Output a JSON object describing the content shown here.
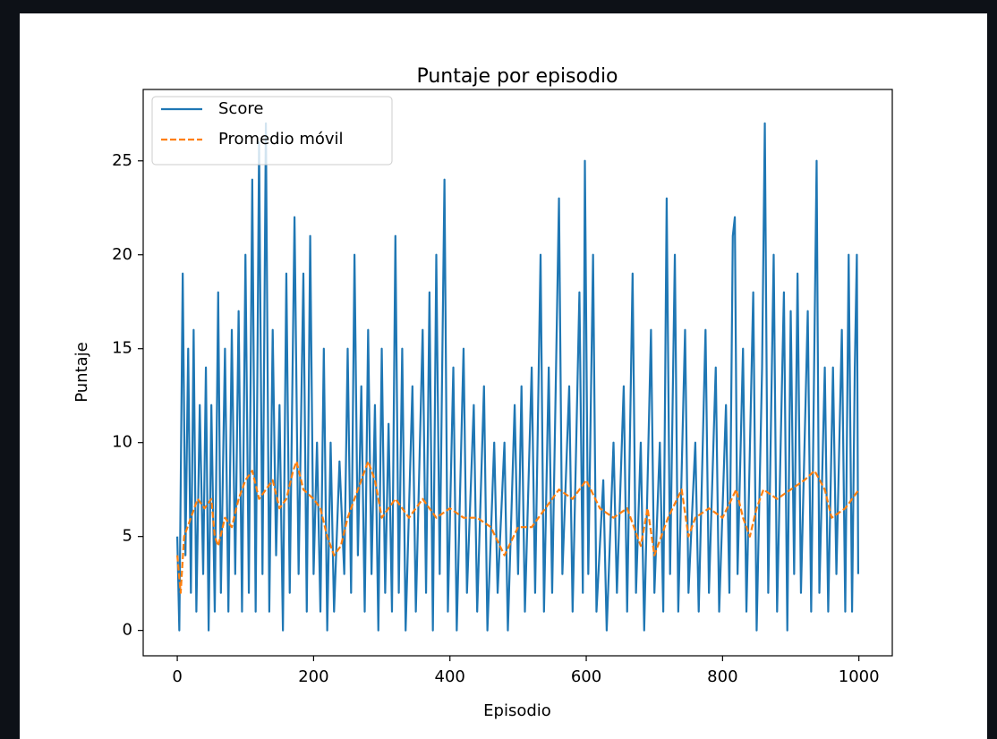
{
  "chart_data": {
    "type": "line",
    "title": "Puntaje por episodio",
    "xlabel": "Episodio",
    "ylabel": "Puntaje",
    "xlim": [
      -50,
      1049
    ],
    "ylim": [
      -1.35,
      28.8
    ],
    "xticks": [
      0,
      200,
      400,
      600,
      800,
      1000
    ],
    "yticks": [
      0,
      5,
      10,
      15,
      20,
      25
    ],
    "legend": "upper left",
    "series": [
      {
        "name": "Score",
        "color": "#1f77b4",
        "style": "solid",
        "x": [
          0,
          3,
          8,
          12,
          16,
          20,
          24,
          28,
          33,
          38,
          42,
          46,
          50,
          55,
          60,
          64,
          70,
          75,
          80,
          85,
          90,
          95,
          100,
          105,
          110,
          115,
          120,
          125,
          130,
          135,
          140,
          145,
          150,
          155,
          160,
          165,
          172,
          178,
          185,
          190,
          195,
          200,
          205,
          210,
          215,
          220,
          225,
          230,
          238,
          245,
          250,
          255,
          260,
          265,
          270,
          275,
          280,
          285,
          290,
          295,
          300,
          305,
          310,
          315,
          320,
          325,
          330,
          335,
          345,
          350,
          360,
          365,
          370,
          375,
          380,
          385,
          392,
          397,
          405,
          410,
          420,
          425,
          435,
          440,
          450,
          455,
          465,
          470,
          480,
          485,
          495,
          500,
          505,
          510,
          520,
          525,
          533,
          538,
          545,
          550,
          560,
          565,
          575,
          580,
          590,
          595,
          598,
          603,
          610,
          615,
          625,
          630,
          640,
          645,
          655,
          660,
          668,
          673,
          680,
          685,
          695,
          700,
          708,
          713,
          718,
          723,
          730,
          735,
          745,
          750,
          760,
          765,
          775,
          780,
          790,
          795,
          805,
          810,
          815,
          818,
          822,
          830,
          835,
          845,
          850,
          858,
          862,
          867,
          875,
          880,
          890,
          895,
          900,
          905,
          910,
          915,
          925,
          930,
          938,
          942,
          950,
          955,
          962,
          967,
          975,
          980,
          985,
          990,
          994,
          997,
          999
        ],
        "values": [
          5,
          0,
          19,
          4,
          15,
          2,
          16,
          1,
          12,
          3,
          14,
          0,
          12,
          1,
          18,
          2,
          15,
          1,
          16,
          3,
          17,
          1,
          20,
          2,
          24,
          1,
          26,
          3,
          27,
          1,
          16,
          4,
          12,
          0,
          19,
          2,
          22,
          3,
          19,
          1,
          21,
          3,
          10,
          1,
          15,
          0,
          10,
          1,
          9,
          3,
          15,
          2,
          20,
          4,
          13,
          1,
          16,
          3,
          12,
          0,
          15,
          2,
          11,
          1,
          21,
          2,
          15,
          0,
          13,
          1,
          16,
          2,
          18,
          0,
          20,
          3,
          24,
          1,
          14,
          0,
          15,
          2,
          12,
          1,
          13,
          0,
          10,
          2,
          10,
          0,
          12,
          3,
          13,
          1,
          14,
          2,
          20,
          1,
          14,
          2,
          23,
          3,
          13,
          1,
          18,
          2,
          25,
          3,
          20,
          1,
          8,
          0,
          10,
          2,
          13,
          1,
          19,
          2,
          10,
          0,
          16,
          2,
          10,
          1,
          23,
          3,
          20,
          1,
          16,
          2,
          10,
          1,
          16,
          2,
          14,
          1,
          12,
          2,
          21,
          22,
          3,
          15,
          1,
          18,
          0,
          14,
          27,
          2,
          20,
          1,
          18,
          0,
          17,
          3,
          19,
          2,
          17,
          1,
          25,
          2,
          14,
          1,
          14,
          3,
          16,
          1,
          20,
          1,
          14,
          20,
          3
        ]
      },
      {
        "name": "Promedio móvil",
        "color": "#ff7f0e",
        "style": "dashed",
        "x": [
          0,
          5,
          10,
          20,
          30,
          40,
          50,
          55,
          60,
          70,
          80,
          90,
          100,
          110,
          120,
          130,
          140,
          150,
          160,
          170,
          175,
          185,
          200,
          210,
          220,
          230,
          240,
          250,
          260,
          270,
          280,
          290,
          300,
          320,
          340,
          360,
          380,
          400,
          420,
          440,
          460,
          480,
          500,
          520,
          540,
          560,
          580,
          600,
          620,
          640,
          660,
          680,
          690,
          700,
          720,
          740,
          750,
          760,
          780,
          800,
          820,
          830,
          840,
          850,
          860,
          880,
          900,
          920,
          935,
          950,
          960,
          980,
          1000
        ],
        "values": [
          4,
          2,
          5,
          6,
          7,
          6.5,
          7,
          5,
          4.5,
          6,
          5.5,
          7,
          8,
          8.5,
          7,
          7.5,
          8,
          6.5,
          7,
          8.5,
          9,
          7.5,
          7,
          6.5,
          5,
          4,
          4.5,
          6,
          7,
          8,
          9,
          8,
          6,
          7,
          6,
          7,
          6,
          6.5,
          6,
          6,
          5.5,
          4,
          5.5,
          5.5,
          6.5,
          7.5,
          7,
          8,
          6.5,
          6,
          6.5,
          4.5,
          6.5,
          4,
          6,
          7.5,
          5,
          6,
          6.5,
          6,
          7.5,
          6,
          5,
          6.5,
          7.5,
          7,
          7.5,
          8,
          8.5,
          7.5,
          6,
          6.5,
          7.5
        ]
      }
    ]
  }
}
